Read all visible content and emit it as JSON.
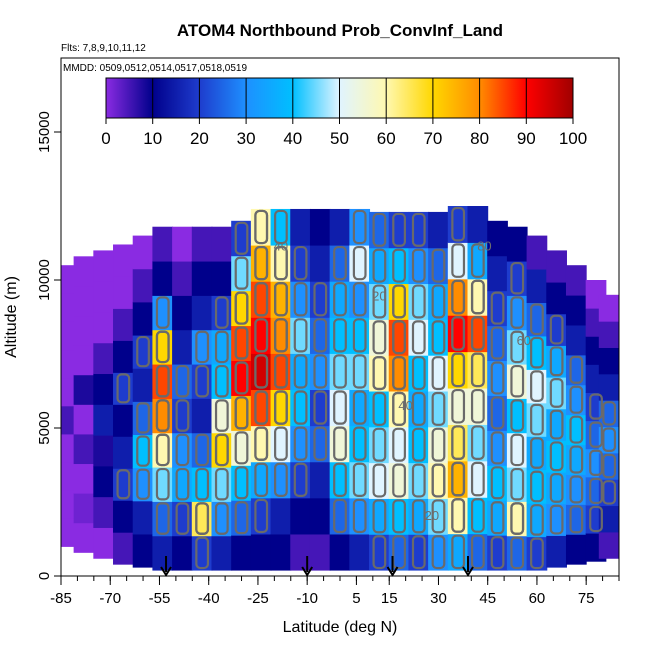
{
  "chart_data": {
    "type": "heatmap",
    "title": "ATOM4 Northbound Prob_ConvInf_Land",
    "flights_note": "Flts: 7,8,9,10,11,12",
    "dates_note": "MMDD: 0509,0512,0514,0517,0518,0519",
    "xlabel": "Latitude (deg N)",
    "ylabel": "Altitude (m)",
    "xlim": [
      -85,
      85
    ],
    "ylim": [
      0,
      17500
    ],
    "x_ticks": [
      -85,
      -70,
      -55,
      -40,
      -25,
      -10,
      5,
      15,
      30,
      45,
      60,
      75
    ],
    "y_ticks": [
      0,
      5000,
      10000,
      15000
    ],
    "colorbar": {
      "ticks": [
        0,
        10,
        20,
        30,
        40,
        50,
        60,
        70,
        80,
        90,
        100
      ],
      "colors": [
        "#8a2be2",
        "#00008b",
        "#1e3ccd",
        "#1e90ff",
        "#00bfff",
        "#e0f4ff",
        "#fff8b0",
        "#ffd700",
        "#ff8c00",
        "#ff0000",
        "#a00000"
      ]
    },
    "contour_levels_labeled": [
      "20",
      "40",
      "60",
      "80"
    ],
    "arrow_latitudes": [
      -53,
      -10,
      16,
      39
    ],
    "columns": [
      {
        "lat": -84,
        "alt_min": 1000,
        "alt_max": 10500,
        "values": [
          0,
          0,
          0,
          0,
          5,
          0,
          0,
          0,
          0,
          0
        ]
      },
      {
        "lat": -78,
        "alt_min": 800,
        "alt_max": 10800,
        "values": [
          0,
          2,
          0,
          5,
          0,
          8,
          0,
          0,
          0,
          0
        ]
      },
      {
        "lat": -72,
        "alt_min": 600,
        "alt_max": 11000,
        "values": [
          0,
          5,
          10,
          8,
          15,
          10,
          5,
          0,
          0,
          0
        ]
      },
      {
        "lat": -66,
        "alt_min": 400,
        "alt_max": 11200,
        "values": [
          5,
          10,
          20,
          15,
          10,
          20,
          10,
          5,
          0,
          0
        ]
      },
      {
        "lat": -60,
        "alt_min": 300,
        "alt_max": 11500,
        "values": [
          10,
          15,
          30,
          40,
          25,
          15,
          20,
          10,
          5,
          0
        ]
      },
      {
        "lat": -54,
        "alt_min": 200,
        "alt_max": 11800,
        "values": [
          15,
          25,
          45,
          60,
          80,
          85,
          70,
          30,
          10,
          5
        ]
      },
      {
        "lat": -48,
        "alt_min": 200,
        "alt_max": 11800,
        "values": [
          10,
          20,
          35,
          30,
          20,
          25,
          15,
          10,
          5,
          0
        ]
      },
      {
        "lat": -42,
        "alt_min": 200,
        "alt_max": 11800,
        "values": [
          20,
          65,
          40,
          25,
          15,
          20,
          30,
          15,
          10,
          5
        ]
      },
      {
        "lat": -36,
        "alt_min": 200,
        "alt_max": 11800,
        "values": [
          15,
          30,
          45,
          70,
          55,
          40,
          35,
          20,
          10,
          5
        ]
      },
      {
        "lat": -30,
        "alt_min": 200,
        "alt_max": 12000,
        "values": [
          10,
          25,
          40,
          55,
          75,
          90,
          85,
          70,
          45,
          20
        ]
      },
      {
        "lat": -24,
        "alt_min": 200,
        "alt_max": 12400,
        "values": [
          10,
          20,
          35,
          60,
          85,
          95,
          90,
          85,
          75,
          60
        ]
      },
      {
        "lat": -18,
        "alt_min": 200,
        "alt_max": 12400,
        "values": [
          10,
          15,
          30,
          50,
          70,
          85,
          80,
          75,
          60,
          40
        ]
      },
      {
        "lat": -12,
        "alt_min": 200,
        "alt_max": 12400,
        "values": [
          5,
          10,
          20,
          30,
          40,
          35,
          45,
          30,
          20,
          15
        ]
      },
      {
        "lat": -6,
        "alt_min": 200,
        "alt_max": 12400,
        "values": [
          5,
          10,
          15,
          25,
          20,
          30,
          25,
          20,
          15,
          10
        ]
      },
      {
        "lat": 0,
        "alt_min": 200,
        "alt_max": 12400,
        "values": [
          10,
          25,
          40,
          55,
          50,
          45,
          40,
          35,
          25,
          15
        ]
      },
      {
        "lat": 6,
        "alt_min": 200,
        "alt_max": 12400,
        "values": [
          15,
          30,
          45,
          40,
          35,
          45,
          40,
          30,
          50,
          30
        ]
      },
      {
        "lat": 12,
        "alt_min": 200,
        "alt_max": 12300,
        "values": [
          20,
          35,
          50,
          45,
          40,
          60,
          55,
          45,
          35,
          25
        ]
      },
      {
        "lat": 18,
        "alt_min": 200,
        "alt_max": 12300,
        "values": [
          25,
          40,
          55,
          50,
          60,
          80,
          85,
          70,
          40,
          20
        ]
      },
      {
        "lat": 24,
        "alt_min": 200,
        "alt_max": 12300,
        "values": [
          20,
          35,
          45,
          40,
          35,
          40,
          50,
          45,
          30,
          20
        ]
      },
      {
        "lat": 30,
        "alt_min": 200,
        "alt_max": 12300,
        "values": [
          30,
          45,
          60,
          55,
          45,
          50,
          40,
          35,
          25,
          15
        ]
      },
      {
        "lat": 36,
        "alt_min": 200,
        "alt_max": 12500,
        "values": [
          35,
          60,
          75,
          65,
          55,
          70,
          90,
          80,
          50,
          20
        ]
      },
      {
        "lat": 42,
        "alt_min": 200,
        "alt_max": 12500,
        "values": [
          25,
          40,
          50,
          45,
          55,
          65,
          85,
          60,
          35,
          15
        ]
      },
      {
        "lat": 48,
        "alt_min": 200,
        "alt_max": 12000,
        "values": [
          20,
          35,
          40,
          30,
          25,
          30,
          25,
          20,
          15,
          10
        ]
      },
      {
        "lat": 54,
        "alt_min": 200,
        "alt_max": 11800,
        "values": [
          25,
          60,
          45,
          50,
          40,
          55,
          45,
          30,
          20,
          10
        ]
      },
      {
        "lat": 60,
        "alt_min": 200,
        "alt_max": 11500,
        "values": [
          20,
          35,
          40,
          35,
          45,
          50,
          40,
          25,
          15,
          5
        ]
      },
      {
        "lat": 66,
        "alt_min": 300,
        "alt_max": 11000,
        "values": [
          15,
          30,
          35,
          40,
          35,
          45,
          35,
          20,
          10,
          5
        ]
      },
      {
        "lat": 72,
        "alt_min": 400,
        "alt_max": 10500,
        "values": [
          10,
          25,
          30,
          35,
          40,
          30,
          25,
          15,
          10,
          5
        ]
      },
      {
        "lat": 78,
        "alt_min": 500,
        "alt_max": 10000,
        "values": [
          10,
          20,
          25,
          30,
          25,
          20,
          15,
          10,
          5,
          0
        ]
      },
      {
        "lat": 82,
        "alt_min": 600,
        "alt_max": 9500,
        "values": [
          5,
          15,
          20,
          25,
          30,
          25,
          15,
          10,
          5,
          0
        ]
      }
    ]
  }
}
